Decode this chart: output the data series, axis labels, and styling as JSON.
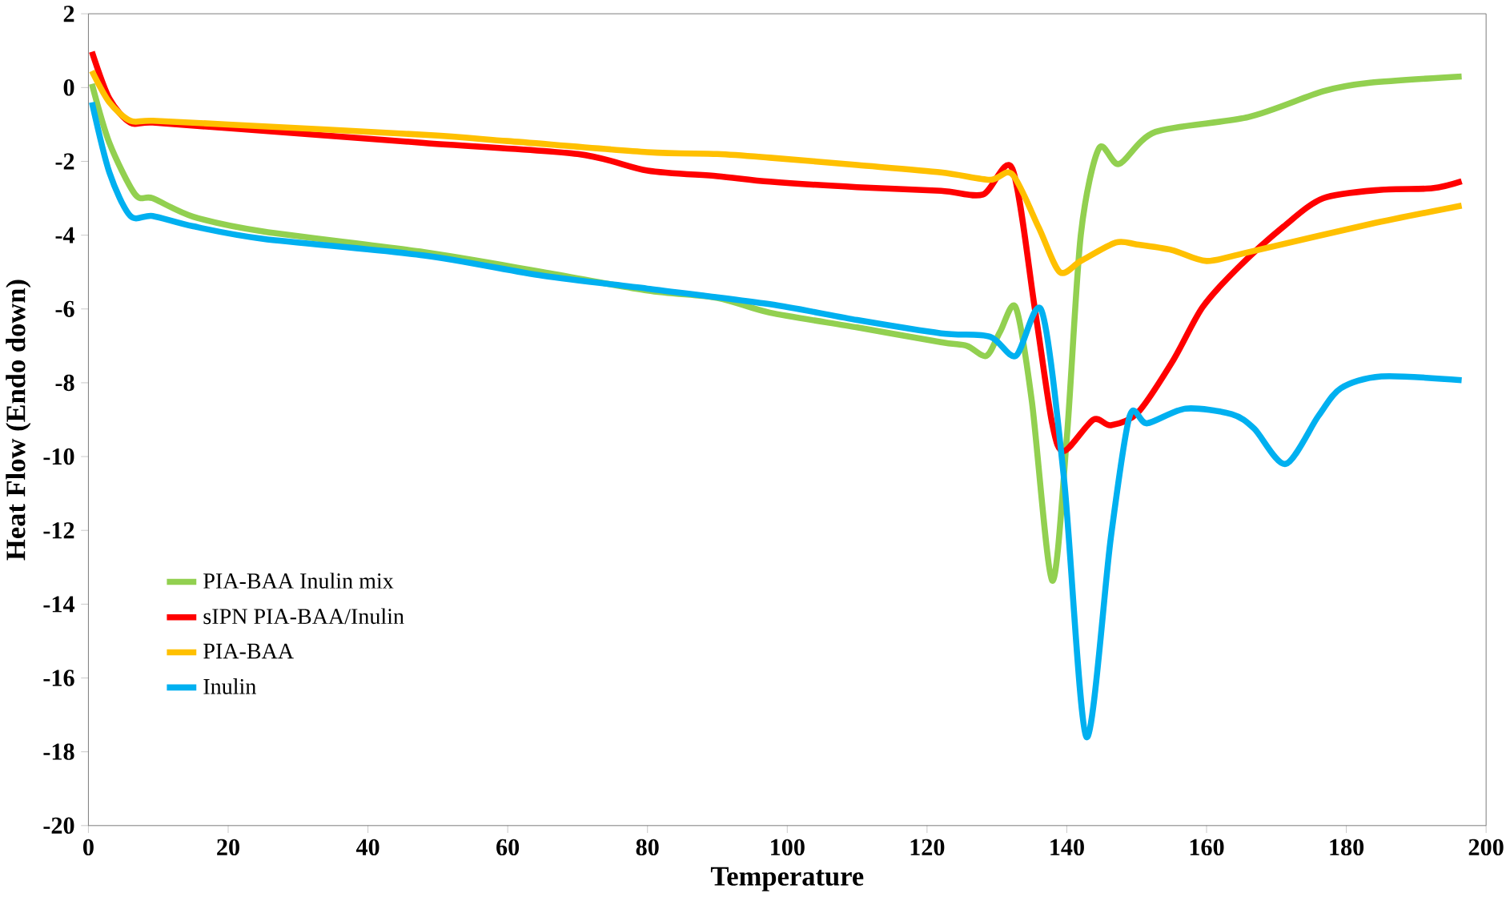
{
  "chart_data": {
    "type": "line",
    "xlabel": "Temperature",
    "ylabel": "Heat Flow (Endo down)",
    "xlim": [
      0,
      200
    ],
    "ylim": [
      -20,
      2
    ],
    "xticks": [
      0,
      20,
      40,
      60,
      80,
      100,
      120,
      140,
      160,
      180,
      200
    ],
    "yticks": [
      -20,
      -18,
      -16,
      -14,
      -12,
      -10,
      -8,
      -6,
      -4,
      -2,
      0,
      2
    ],
    "legend": "bottom left",
    "marker": "none",
    "line_style": "solid",
    "grid": false,
    "series": [
      {
        "name": "PIA-BAA Inulin mix",
        "color": "#92d050",
        "x": [
          0.5,
          3,
          6.7,
          9.2,
          15,
          25,
          48,
          65,
          80,
          90,
          97.5,
          110,
          122,
          125.7,
          128.5,
          130.5,
          132.7,
          135,
          137.9,
          140,
          142,
          144.6,
          147.5,
          152.7,
          166,
          176.7,
          183.4,
          196.5
        ],
        "values": [
          0.1,
          -1.5,
          -2.9,
          -3.0,
          -3.5,
          -3.9,
          -4.46,
          -5.0,
          -5.5,
          -5.7,
          -6.1,
          -6.5,
          -6.9,
          -7.0,
          -7.27,
          -6.6,
          -5.96,
          -8.5,
          -13.36,
          -9.5,
          -4.0,
          -1.65,
          -2.07,
          -1.2,
          -0.8,
          -0.1,
          0.13,
          0.3
        ]
      },
      {
        "name": "sIPN PIA-BAA/Inulin",
        "color": "#ff0000",
        "x": [
          0.5,
          3,
          6,
          9.2,
          20,
          48,
          70,
          80,
          90,
          97.5,
          110,
          122,
          128,
          132.2,
          135.4,
          137.9,
          139.6,
          143.8,
          146.3,
          150.2,
          155.2,
          159.4,
          164.4,
          171,
          176.7,
          185,
          192.3,
          196.5
        ],
        "values": [
          0.97,
          -0.3,
          -0.95,
          -0.95,
          -1.1,
          -1.5,
          -1.8,
          -2.25,
          -2.4,
          -2.55,
          -2.7,
          -2.8,
          -2.9,
          -2.2,
          -5.96,
          -9.1,
          -9.85,
          -9.0,
          -9.15,
          -8.8,
          -7.4,
          -5.96,
          -4.9,
          -3.77,
          -3.0,
          -2.77,
          -2.73,
          -2.54
        ]
      },
      {
        "name": "PIA-BAA",
        "color": "#ffc000",
        "x": [
          0.5,
          3,
          6,
          9.2,
          20,
          48,
          60,
          80,
          90,
          97.5,
          110,
          122,
          129,
          132.2,
          136,
          139,
          142,
          147,
          150,
          155,
          160,
          166,
          183.4,
          196.5
        ],
        "values": [
          0.45,
          -0.4,
          -0.9,
          -0.9,
          -1.0,
          -1.28,
          -1.45,
          -1.75,
          -1.8,
          -1.9,
          -2.1,
          -2.3,
          -2.5,
          -2.35,
          -3.8,
          -5.0,
          -4.7,
          -4.2,
          -4.25,
          -4.4,
          -4.7,
          -4.46,
          -3.7,
          -3.2
        ]
      },
      {
        "name": "Inulin",
        "color": "#00b0f0",
        "x": [
          0.5,
          3,
          6,
          9.2,
          15,
          25,
          48,
          65,
          80,
          97.5,
          110,
          122,
          129,
          132.7,
          136.4,
          139.6,
          142.8,
          146.3,
          149,
          151.5,
          157,
          163.6,
          166.8,
          171.3,
          176,
          179.2,
          185,
          196.5
        ],
        "values": [
          -0.4,
          -2.3,
          -3.48,
          -3.48,
          -3.76,
          -4.1,
          -4.55,
          -5.1,
          -5.45,
          -5.87,
          -6.3,
          -6.66,
          -6.75,
          -7.27,
          -6.05,
          -10.6,
          -17.6,
          -12.2,
          -8.9,
          -9.1,
          -8.7,
          -8.85,
          -9.24,
          -10.2,
          -8.9,
          -8.15,
          -7.83,
          -7.93
        ]
      }
    ]
  }
}
